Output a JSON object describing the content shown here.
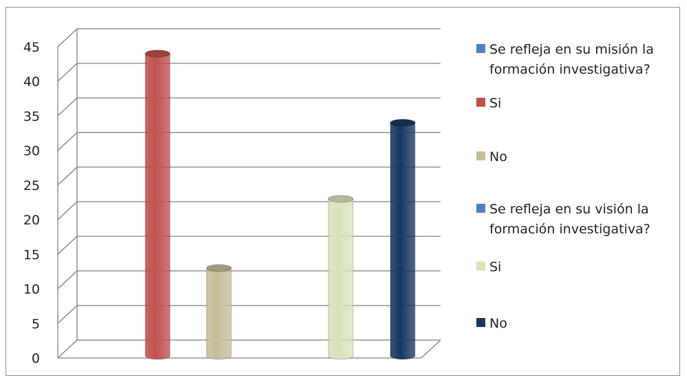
{
  "chart_data": {
    "type": "bar",
    "style": "3d-cylinder",
    "ylim": [
      0,
      45
    ],
    "yticks": [
      "0",
      "5",
      "10",
      "15",
      "20",
      "25",
      "30",
      "35",
      "40",
      "45"
    ],
    "grid": true,
    "legend_position": "right",
    "groups": [
      {
        "label": "Se refleja en su misión la formación investigativa?",
        "bars": [
          {
            "name": "Si",
            "value": 44,
            "color": "#c0504d"
          },
          {
            "name": "No",
            "value": 13,
            "color": "#c4bd97"
          }
        ]
      },
      {
        "label": "Se refleja en su visión la formación investigativa?",
        "bars": [
          {
            "name": "Si",
            "value": 23,
            "color": "#d7e4bd"
          },
          {
            "name": "No",
            "value": 34,
            "color": "#17375e"
          }
        ]
      }
    ],
    "legend": [
      {
        "label": "Se refleja en su misión la formación investigativa?",
        "color": "#4f81bd"
      },
      {
        "label": "Si",
        "color": "#c0504d"
      },
      {
        "label": "No",
        "color": "#c4bd97"
      },
      {
        "label": "Se refleja en su visión la formación investigativa?",
        "color": "#4f81bd"
      },
      {
        "label": "Si",
        "color": "#d7e4bd"
      },
      {
        "label": "No",
        "color": "#17375e"
      }
    ]
  }
}
